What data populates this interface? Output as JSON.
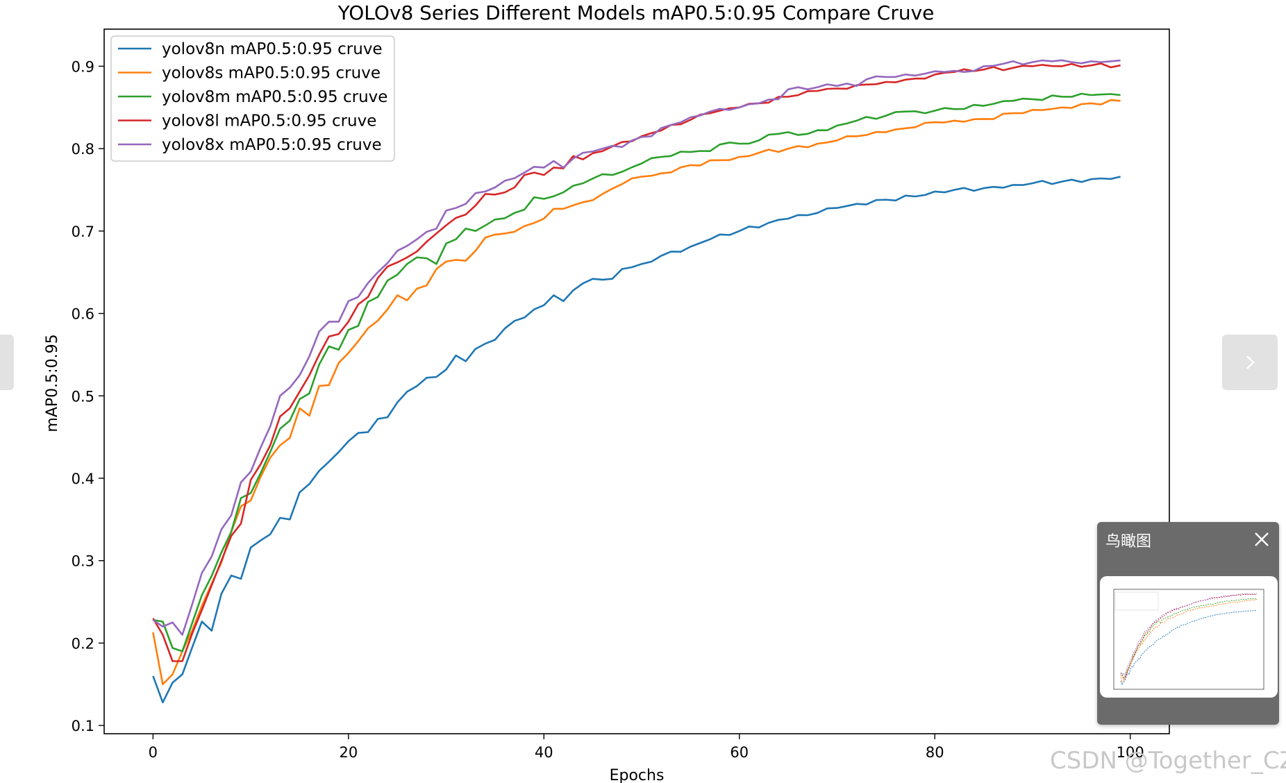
{
  "viewer": {
    "prev_icon": "chevron-left-icon",
    "next_icon": "chevron-right-icon",
    "birdseye": {
      "title": "鸟瞰图",
      "close_icon": "close-icon"
    },
    "watermark": "CSDN @Together_CZ"
  },
  "chart_data": {
    "type": "line",
    "title": "YOLOv8 Series Different Models mAP0.5:0.95 Compare Cruve",
    "xlabel": "Epochs",
    "ylabel": "mAP0.5:0.95",
    "xlim": [
      -5,
      104
    ],
    "ylim": [
      0.09,
      0.945
    ],
    "xticks": [
      0,
      20,
      40,
      60,
      80,
      100
    ],
    "yticks": [
      0.1,
      0.2,
      0.3,
      0.4,
      0.5,
      0.6,
      0.7,
      0.8,
      0.9
    ],
    "grid": false,
    "legend_position": "top-left",
    "x_start": 0,
    "x_end": 99,
    "series": [
      {
        "name": "yolov8n mAP0.5:0.95 cruve",
        "color": "#1f77b4",
        "keypoints": [
          [
            0,
            0.16
          ],
          [
            1,
            0.128
          ],
          [
            2,
            0.152
          ],
          [
            3,
            0.162
          ],
          [
            5,
            0.226
          ],
          [
            6,
            0.215
          ],
          [
            7,
            0.26
          ],
          [
            8,
            0.282
          ],
          [
            9,
            0.278
          ],
          [
            10,
            0.316
          ],
          [
            12,
            0.332
          ],
          [
            13,
            0.352
          ],
          [
            14,
            0.35
          ],
          [
            15,
            0.383
          ],
          [
            16,
            0.393
          ],
          [
            18,
            0.42
          ],
          [
            20,
            0.445
          ],
          [
            21,
            0.455
          ],
          [
            22,
            0.456
          ],
          [
            23,
            0.472
          ],
          [
            24,
            0.474
          ],
          [
            25,
            0.492
          ],
          [
            26,
            0.505
          ],
          [
            28,
            0.522
          ],
          [
            29,
            0.523
          ],
          [
            30,
            0.532
          ],
          [
            31,
            0.549
          ],
          [
            32,
            0.542
          ],
          [
            33,
            0.557
          ],
          [
            35,
            0.568
          ],
          [
            37,
            0.591
          ],
          [
            38,
            0.595
          ],
          [
            40,
            0.61
          ],
          [
            41,
            0.622
          ],
          [
            42,
            0.615
          ],
          [
            43,
            0.628
          ],
          [
            45,
            0.642
          ],
          [
            46,
            0.641
          ],
          [
            47,
            0.642
          ],
          [
            48,
            0.654
          ],
          [
            50,
            0.66
          ],
          [
            52,
            0.67
          ],
          [
            55,
            0.681
          ],
          [
            57,
            0.69
          ],
          [
            60,
            0.7
          ],
          [
            63,
            0.71
          ],
          [
            65,
            0.715
          ],
          [
            68,
            0.722
          ],
          [
            70,
            0.728
          ],
          [
            72,
            0.733
          ],
          [
            75,
            0.738
          ],
          [
            78,
            0.742
          ],
          [
            80,
            0.748
          ],
          [
            82,
            0.75
          ],
          [
            85,
            0.752
          ],
          [
            88,
            0.756
          ],
          [
            90,
            0.758
          ],
          [
            93,
            0.76
          ],
          [
            96,
            0.763
          ],
          [
            99,
            0.766
          ]
        ]
      },
      {
        "name": "yolov8s mAP0.5:0.95 cruve",
        "color": "#ff7f0e",
        "keypoints": [
          [
            0,
            0.213
          ],
          [
            1,
            0.15
          ],
          [
            2,
            0.162
          ],
          [
            3,
            0.19
          ],
          [
            5,
            0.245
          ],
          [
            7,
            0.298
          ],
          [
            8,
            0.335
          ],
          [
            9,
            0.366
          ],
          [
            10,
            0.373
          ],
          [
            12,
            0.425
          ],
          [
            13,
            0.44
          ],
          [
            14,
            0.449
          ],
          [
            15,
            0.485
          ],
          [
            16,
            0.476
          ],
          [
            17,
            0.512
          ],
          [
            18,
            0.513
          ],
          [
            19,
            0.54
          ],
          [
            20,
            0.552
          ],
          [
            22,
            0.582
          ],
          [
            24,
            0.605
          ],
          [
            25,
            0.622
          ],
          [
            26,
            0.616
          ],
          [
            27,
            0.63
          ],
          [
            28,
            0.634
          ],
          [
            29,
            0.654
          ],
          [
            30,
            0.663
          ],
          [
            31,
            0.665
          ],
          [
            32,
            0.664
          ],
          [
            33,
            0.676
          ],
          [
            34,
            0.692
          ],
          [
            36,
            0.697
          ],
          [
            38,
            0.706
          ],
          [
            40,
            0.715
          ],
          [
            41,
            0.727
          ],
          [
            42,
            0.727
          ],
          [
            44,
            0.735
          ],
          [
            46,
            0.745
          ],
          [
            48,
            0.757
          ],
          [
            50,
            0.766
          ],
          [
            52,
            0.77
          ],
          [
            55,
            0.78
          ],
          [
            58,
            0.786
          ],
          [
            60,
            0.79
          ],
          [
            62,
            0.795
          ],
          [
            65,
            0.8
          ],
          [
            68,
            0.806
          ],
          [
            70,
            0.81
          ],
          [
            72,
            0.815
          ],
          [
            75,
            0.82
          ],
          [
            78,
            0.826
          ],
          [
            80,
            0.832
          ],
          [
            82,
            0.834
          ],
          [
            85,
            0.836
          ],
          [
            88,
            0.843
          ],
          [
            90,
            0.847
          ],
          [
            93,
            0.85
          ],
          [
            96,
            0.855
          ],
          [
            99,
            0.858
          ]
        ]
      },
      {
        "name": "yolov8m mAP0.5:0.95 cruve",
        "color": "#2ca02c",
        "keypoints": [
          [
            0,
            0.228
          ],
          [
            1,
            0.226
          ],
          [
            2,
            0.194
          ],
          [
            3,
            0.19
          ],
          [
            5,
            0.258
          ],
          [
            7,
            0.31
          ],
          [
            8,
            0.335
          ],
          [
            9,
            0.376
          ],
          [
            10,
            0.382
          ],
          [
            12,
            0.432
          ],
          [
            13,
            0.46
          ],
          [
            14,
            0.47
          ],
          [
            15,
            0.496
          ],
          [
            16,
            0.503
          ],
          [
            17,
            0.538
          ],
          [
            18,
            0.56
          ],
          [
            19,
            0.556
          ],
          [
            20,
            0.58
          ],
          [
            21,
            0.585
          ],
          [
            22,
            0.614
          ],
          [
            23,
            0.62
          ],
          [
            24,
            0.64
          ],
          [
            25,
            0.647
          ],
          [
            26,
            0.66
          ],
          [
            27,
            0.668
          ],
          [
            28,
            0.667
          ],
          [
            29,
            0.66
          ],
          [
            30,
            0.685
          ],
          [
            31,
            0.69
          ],
          [
            32,
            0.703
          ],
          [
            33,
            0.7
          ],
          [
            35,
            0.714
          ],
          [
            37,
            0.722
          ],
          [
            38,
            0.726
          ],
          [
            39,
            0.741
          ],
          [
            40,
            0.739
          ],
          [
            42,
            0.747
          ],
          [
            44,
            0.758
          ],
          [
            46,
            0.769
          ],
          [
            48,
            0.772
          ],
          [
            50,
            0.782
          ],
          [
            52,
            0.79
          ],
          [
            55,
            0.796
          ],
          [
            57,
            0.797
          ],
          [
            58,
            0.805
          ],
          [
            60,
            0.806
          ],
          [
            62,
            0.81
          ],
          [
            63,
            0.817
          ],
          [
            65,
            0.82
          ],
          [
            67,
            0.818
          ],
          [
            70,
            0.828
          ],
          [
            72,
            0.834
          ],
          [
            75,
            0.84
          ],
          [
            77,
            0.845
          ],
          [
            79,
            0.843
          ],
          [
            80,
            0.846
          ],
          [
            82,
            0.848
          ],
          [
            85,
            0.852
          ],
          [
            88,
            0.858
          ],
          [
            90,
            0.86
          ],
          [
            93,
            0.863
          ],
          [
            96,
            0.865
          ],
          [
            99,
            0.865
          ]
        ]
      },
      {
        "name": "yolov8l mAP0.5:0.95 cruve",
        "color": "#d62728",
        "keypoints": [
          [
            0,
            0.23
          ],
          [
            1,
            0.21
          ],
          [
            2,
            0.178
          ],
          [
            3,
            0.178
          ],
          [
            5,
            0.24
          ],
          [
            7,
            0.3
          ],
          [
            8,
            0.33
          ],
          [
            9,
            0.345
          ],
          [
            10,
            0.398
          ],
          [
            12,
            0.44
          ],
          [
            13,
            0.475
          ],
          [
            14,
            0.485
          ],
          [
            15,
            0.505
          ],
          [
            16,
            0.525
          ],
          [
            17,
            0.55
          ],
          [
            18,
            0.572
          ],
          [
            19,
            0.575
          ],
          [
            20,
            0.59
          ],
          [
            21,
            0.611
          ],
          [
            22,
            0.62
          ],
          [
            23,
            0.643
          ],
          [
            24,
            0.657
          ],
          [
            26,
            0.668
          ],
          [
            28,
            0.687
          ],
          [
            29,
            0.697
          ],
          [
            30,
            0.707
          ],
          [
            31,
            0.716
          ],
          [
            32,
            0.72
          ],
          [
            34,
            0.745
          ],
          [
            36,
            0.747
          ],
          [
            37,
            0.753
          ],
          [
            38,
            0.768
          ],
          [
            39,
            0.771
          ],
          [
            40,
            0.768
          ],
          [
            41,
            0.777
          ],
          [
            42,
            0.776
          ],
          [
            43,
            0.791
          ],
          [
            44,
            0.787
          ],
          [
            46,
            0.797
          ],
          [
            48,
            0.808
          ],
          [
            50,
            0.815
          ],
          [
            52,
            0.822
          ],
          [
            55,
            0.835
          ],
          [
            57,
            0.843
          ],
          [
            60,
            0.85
          ],
          [
            62,
            0.855
          ],
          [
            65,
            0.863
          ],
          [
            68,
            0.87
          ],
          [
            70,
            0.873
          ],
          [
            72,
            0.877
          ],
          [
            75,
            0.881
          ],
          [
            78,
            0.885
          ],
          [
            80,
            0.89
          ],
          [
            82,
            0.893
          ],
          [
            85,
            0.896
          ],
          [
            88,
            0.898
          ],
          [
            90,
            0.9
          ],
          [
            93,
            0.9
          ],
          [
            96,
            0.901
          ],
          [
            99,
            0.901
          ]
        ]
      },
      {
        "name": "yolov8x mAP0.5:0.95 cruve",
        "color": "#9467bd",
        "keypoints": [
          [
            0,
            0.228
          ],
          [
            1,
            0.22
          ],
          [
            2,
            0.225
          ],
          [
            3,
            0.21
          ],
          [
            5,
            0.285
          ],
          [
            6,
            0.305
          ],
          [
            7,
            0.338
          ],
          [
            8,
            0.355
          ],
          [
            9,
            0.395
          ],
          [
            10,
            0.408
          ],
          [
            12,
            0.463
          ],
          [
            13,
            0.5
          ],
          [
            14,
            0.51
          ],
          [
            15,
            0.525
          ],
          [
            16,
            0.548
          ],
          [
            17,
            0.578
          ],
          [
            18,
            0.59
          ],
          [
            19,
            0.59
          ],
          [
            20,
            0.615
          ],
          [
            21,
            0.62
          ],
          [
            23,
            0.65
          ],
          [
            25,
            0.676
          ],
          [
            26,
            0.682
          ],
          [
            28,
            0.699
          ],
          [
            29,
            0.703
          ],
          [
            30,
            0.725
          ],
          [
            31,
            0.728
          ],
          [
            32,
            0.733
          ],
          [
            33,
            0.746
          ],
          [
            34,
            0.748
          ],
          [
            36,
            0.761
          ],
          [
            38,
            0.771
          ],
          [
            39,
            0.778
          ],
          [
            40,
            0.777
          ],
          [
            41,
            0.785
          ],
          [
            42,
            0.777
          ],
          [
            43,
            0.788
          ],
          [
            44,
            0.795
          ],
          [
            46,
            0.8
          ],
          [
            48,
            0.802
          ],
          [
            49,
            0.81
          ],
          [
            51,
            0.815
          ],
          [
            52,
            0.825
          ],
          [
            54,
            0.832
          ],
          [
            55,
            0.838
          ],
          [
            57,
            0.845
          ],
          [
            59,
            0.847
          ],
          [
            60,
            0.85
          ],
          [
            62,
            0.855
          ],
          [
            64,
            0.86
          ],
          [
            65,
            0.872
          ],
          [
            67,
            0.872
          ],
          [
            69,
            0.878
          ],
          [
            71,
            0.879
          ],
          [
            72,
            0.876
          ],
          [
            73,
            0.884
          ],
          [
            75,
            0.887
          ],
          [
            77,
            0.89
          ],
          [
            79,
            0.891
          ],
          [
            81,
            0.893
          ],
          [
            83,
            0.893
          ],
          [
            85,
            0.9
          ],
          [
            87,
            0.903
          ],
          [
            90,
            0.905
          ],
          [
            92,
            0.906
          ],
          [
            94,
            0.905
          ],
          [
            96,
            0.906
          ],
          [
            99,
            0.907
          ]
        ]
      }
    ]
  }
}
